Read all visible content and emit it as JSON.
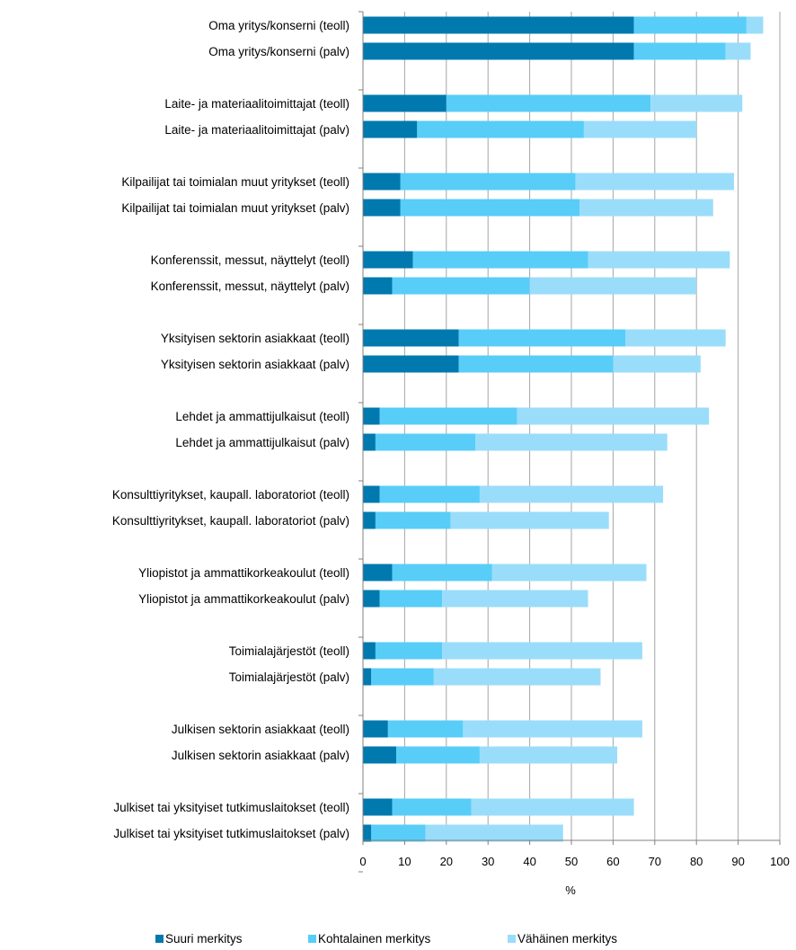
{
  "chart_data": {
    "type": "bar",
    "orientation": "horizontal",
    "stacked": true,
    "categories": [
      "Oma yritys/konserni (teoll)",
      "Oma yritys/konserni (palv)",
      "Laite- ja materiaalitoimittajat (teoll)",
      "Laite- ja materiaalitoimittajat (palv)",
      "Kilpailijat tai toimialan muut yritykset (teoll)",
      "Kilpailijat tai toimialan muut yritykset (palv)",
      "Konferenssit, messut, näyttelyt (teoll)",
      "Konferenssit, messut, näyttelyt (palv)",
      "Yksityisen sektorin asiakkaat (teoll)",
      "Yksityisen sektorin asiakkaat (palv)",
      "Lehdet ja ammattijulkaisut (teoll)",
      "Lehdet ja ammattijulkaisut (palv)",
      "Konsulttiyritykset, kaupall. laboratoriot (teoll)",
      "Konsulttiyritykset, kaupall. laboratoriot (palv)",
      "Yliopistot ja ammattikorkeakoulut (teoll)",
      "Yliopistot ja ammattikorkeakoulut (palv)",
      "Toimialajärjestöt (teoll)",
      "Toimialajärjestöt (palv)",
      "Julkisen sektorin asiakkaat (teoll)",
      "Julkisen sektorin asiakkaat (palv)",
      "Julkiset tai yksityiset tutkimuslaitokset (teoll)",
      "Julkiset tai yksityiset tutkimuslaitokset (palv)"
    ],
    "series": [
      {
        "name": "Suuri merkitys",
        "color": "#0079AE",
        "values": [
          65,
          65,
          20,
          13,
          9,
          9,
          12,
          7,
          23,
          23,
          4,
          3,
          4,
          3,
          7,
          4,
          3,
          2,
          6,
          8,
          7,
          2
        ]
      },
      {
        "name": "Kohtalainen merkitys",
        "color": "#58CDF8",
        "values": [
          27,
          22,
          49,
          40,
          42,
          43,
          42,
          33,
          40,
          37,
          33,
          24,
          24,
          18,
          24,
          15,
          16,
          15,
          18,
          20,
          19,
          13
        ]
      },
      {
        "name": "Vähäinen merkitys",
        "color": "#9ADDFA",
        "values": [
          4,
          6,
          22,
          27,
          38,
          32,
          34,
          40,
          24,
          21,
          46,
          46,
          44,
          38,
          37,
          35,
          48,
          40,
          43,
          33,
          39,
          33
        ]
      }
    ],
    "xlabel": "%",
    "xlim": [
      0,
      100
    ],
    "xticks": [
      "0",
      "10",
      "20",
      "30",
      "40",
      "50",
      "60",
      "70",
      "80",
      "90",
      "100"
    ],
    "grid": true,
    "legend_position": "bottom"
  }
}
